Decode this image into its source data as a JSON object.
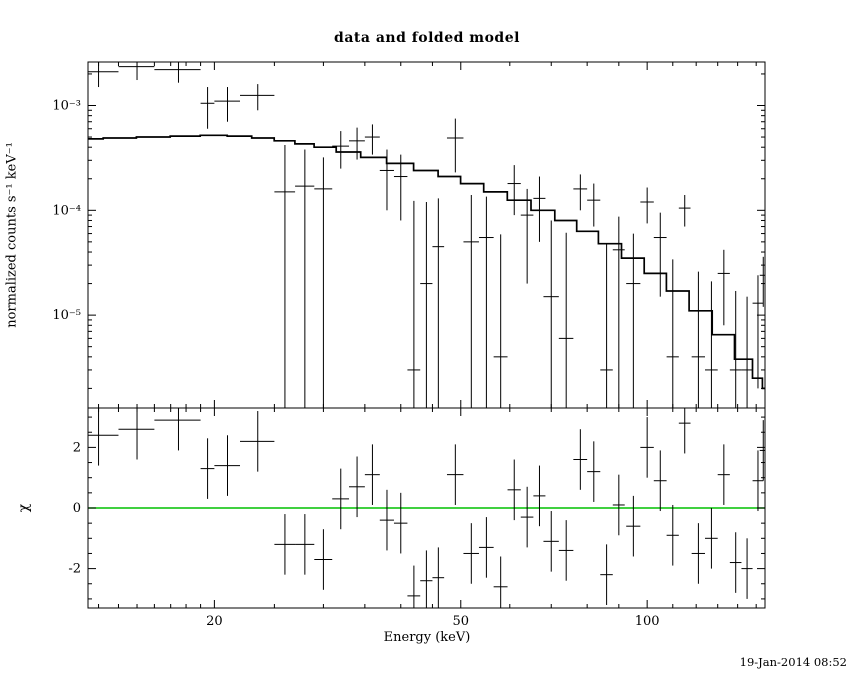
{
  "colors": {
    "background": "#ffffff",
    "foreground": "#000000",
    "zero_line_green": "#00c000"
  },
  "chart_data": {
    "type": "scatter",
    "title": "data and folded model",
    "xlabel": "Energy (keV)",
    "timestamp": "19-Jan-2014 08:52",
    "x_scale": "log",
    "xlim": [
      12.5,
      155
    ],
    "xticks": [
      20,
      50,
      100
    ],
    "xtick_labels": [
      "20",
      "50",
      "100"
    ],
    "x_minor_ticks": [
      13,
      14,
      15,
      16,
      17,
      18,
      19,
      25,
      30,
      35,
      40,
      45,
      60,
      70,
      80,
      90,
      110,
      120,
      130,
      140,
      150
    ],
    "top_panel": {
      "ylabel": "normalized counts s⁻¹ keV⁻¹",
      "y_scale": "log",
      "ylim": [
        1.3e-06,
        0.0026
      ],
      "yticks": [
        0.001,
        0.0001,
        1e-05
      ],
      "ytick_labels": [
        "10⁻³",
        "10⁻⁴",
        "10⁻⁵"
      ],
      "model": {
        "energy": [
          12.5,
          14,
          16,
          18,
          20,
          22,
          24,
          26,
          28,
          30,
          33,
          36,
          40,
          44,
          48,
          52,
          57,
          62,
          68,
          74,
          80,
          87,
          95,
          103,
          112,
          122,
          133,
          144,
          152,
          155
        ],
        "value": [
          0.00048,
          0.00049,
          0.0005,
          0.00051,
          0.00052,
          0.00051,
          0.00049,
          0.00046,
          0.00043,
          0.0004,
          0.00036,
          0.00032,
          0.00028,
          0.00024,
          0.00021,
          0.00018,
          0.00015,
          0.000125,
          0.0001,
          8e-05,
          6.3e-05,
          4.8e-05,
          3.5e-05,
          2.5e-05,
          1.7e-05,
          1.1e-05,
          6.5e-06,
          3.8e-06,
          2.5e-06,
          2e-06
        ]
      },
      "points_columns": [
        "x",
        "xerr",
        "y",
        "yerr"
      ],
      "points": [
        [
          13,
          1,
          0.0021,
          0.0006
        ],
        [
          15,
          1,
          0.00235,
          0.0006
        ],
        [
          17.5,
          1.5,
          0.0022,
          0.00055
        ],
        [
          19.5,
          0.5,
          0.00105,
          0.00045
        ],
        [
          21,
          1,
          0.0011,
          0.0004
        ],
        [
          23.5,
          1.5,
          0.00125,
          0.00035
        ],
        [
          26,
          1,
          0.00015,
          0.00027
        ],
        [
          28,
          1,
          0.00017,
          0.00021
        ],
        [
          30,
          1,
          0.00016,
          0.00016
        ],
        [
          32,
          1,
          0.00041,
          0.00016
        ],
        [
          34,
          1,
          0.00046,
          0.000155
        ],
        [
          36,
          1,
          0.0005,
          0.00016
        ],
        [
          38,
          1,
          0.00024,
          0.00014
        ],
        [
          40,
          1,
          0.00021,
          0.00013
        ],
        [
          42,
          1,
          3e-06,
          0.00012
        ],
        [
          44,
          1,
          2e-05,
          0.0001
        ],
        [
          46,
          1,
          4.5e-05,
          8.5e-05
        ],
        [
          49,
          1.5,
          0.00049,
          0.00026
        ],
        [
          52,
          1.5,
          5e-05,
          9e-05
        ],
        [
          55,
          1.5,
          5.5e-05,
          8e-05
        ],
        [
          58,
          1.5,
          4e-06,
          5.5e-05
        ],
        [
          61,
          1.5,
          0.00018,
          9e-05
        ],
        [
          64,
          1.5,
          9e-05,
          7e-05
        ],
        [
          67,
          1.5,
          0.00013,
          8e-05
        ],
        [
          70,
          2,
          1.5e-05,
          6.5e-05
        ],
        [
          74,
          2,
          6e-06,
          5.5e-05
        ],
        [
          78,
          2,
          0.00016,
          6e-05
        ],
        [
          82,
          2,
          0.000125,
          5.5e-05
        ],
        [
          86,
          2,
          3e-06,
          4.5e-05
        ],
        [
          90,
          2,
          4.2e-05,
          4.5e-05
        ],
        [
          95,
          2.5,
          2e-05,
          4e-05
        ],
        [
          100,
          2.5,
          0.00012,
          4.5e-05
        ],
        [
          105,
          2.5,
          5.5e-05,
          4e-05
        ],
        [
          110,
          2.5,
          4e-06,
          3e-05
        ],
        [
          115,
          2.5,
          0.000105,
          3.5e-05
        ],
        [
          121,
          3,
          4e-06,
          2.2e-05
        ],
        [
          127,
          3,
          3e-06,
          1.8e-05
        ],
        [
          133,
          3,
          2.5e-05,
          1.7e-05
        ],
        [
          139,
          3,
          3e-06,
          1.4e-05
        ],
        [
          145,
          3,
          3e-06,
          1.2e-05
        ],
        [
          151,
          3,
          1.3e-05,
          1.1e-05
        ],
        [
          154,
          2,
          2.4e-05,
          1.2e-05
        ]
      ]
    },
    "bottom_panel": {
      "ylabel": "χ",
      "y_scale": "linear",
      "ylim": [
        -3.3,
        3.3
      ],
      "yticks": [
        -2,
        0,
        2
      ],
      "ytick_labels": [
        "-2",
        "0",
        "2"
      ],
      "zero_line": {
        "y": 0,
        "color": "#00c000"
      },
      "points_columns": [
        "x",
        "xerr",
        "chi",
        "chierr"
      ],
      "points": [
        [
          13,
          1,
          2.4,
          1.0
        ],
        [
          15,
          1,
          2.6,
          1.0
        ],
        [
          17.5,
          1.5,
          2.9,
          1.0
        ],
        [
          19.5,
          0.5,
          1.3,
          1.0
        ],
        [
          21,
          1,
          1.4,
          1.0
        ],
        [
          23.5,
          1.5,
          2.2,
          1.0
        ],
        [
          26,
          1,
          -1.2,
          1.0
        ],
        [
          28,
          1,
          -1.2,
          1.0
        ],
        [
          30,
          1,
          -1.7,
          1.0
        ],
        [
          32,
          1,
          0.3,
          1.0
        ],
        [
          34,
          1,
          0.7,
          1.0
        ],
        [
          36,
          1,
          1.1,
          1.0
        ],
        [
          38,
          1,
          -0.4,
          1.0
        ],
        [
          40,
          1,
          -0.5,
          1.0
        ],
        [
          42,
          1,
          -2.9,
          1.0
        ],
        [
          44,
          1,
          -2.4,
          1.0
        ],
        [
          46,
          1,
          -2.3,
          1.0
        ],
        [
          49,
          1.5,
          1.1,
          1.0
        ],
        [
          52,
          1.5,
          -1.5,
          1.0
        ],
        [
          55,
          1.5,
          -1.3,
          1.0
        ],
        [
          58,
          1.5,
          -2.6,
          1.0
        ],
        [
          61,
          1.5,
          0.6,
          1.0
        ],
        [
          64,
          1.5,
          -0.3,
          1.0
        ],
        [
          67,
          1.5,
          0.4,
          1.0
        ],
        [
          70,
          2,
          -1.1,
          1.0
        ],
        [
          74,
          2,
          -1.4,
          1.0
        ],
        [
          78,
          2,
          1.6,
          1.0
        ],
        [
          82,
          2,
          1.2,
          1.0
        ],
        [
          86,
          2,
          -2.2,
          1.0
        ],
        [
          90,
          2,
          0.1,
          1.0
        ],
        [
          95,
          2.5,
          -0.6,
          1.0
        ],
        [
          100,
          2.5,
          2.0,
          1.0
        ],
        [
          105,
          2.5,
          0.9,
          1.0
        ],
        [
          110,
          2.5,
          -0.9,
          1.0
        ],
        [
          115,
          2.5,
          2.8,
          1.0
        ],
        [
          121,
          3,
          -1.5,
          1.0
        ],
        [
          127,
          3,
          -1.0,
          1.0
        ],
        [
          133,
          3,
          1.1,
          1.0
        ],
        [
          139,
          3,
          -1.8,
          1.0
        ],
        [
          145,
          3,
          -2.0,
          1.0
        ],
        [
          151,
          3,
          0.9,
          1.0
        ],
        [
          154,
          2,
          1.9,
          1.0
        ]
      ]
    }
  }
}
